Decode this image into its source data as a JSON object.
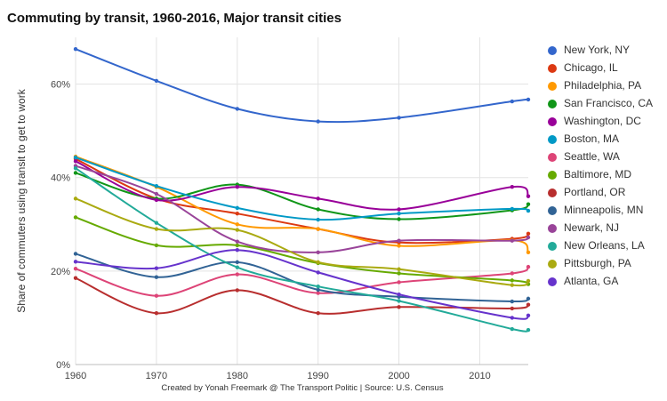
{
  "chart_data": {
    "type": "line",
    "title": "Commuting by transit, 1960-2016, Major transit cities",
    "xlabel": "",
    "ylabel": "Share of commuters using transit to get to work",
    "footnote": "Created by Yonah Freemark @ The Transport Politic | Source: U.S. Census",
    "x": [
      1960,
      1970,
      1980,
      1990,
      2000,
      2014,
      2016
    ],
    "xlim": [
      1960,
      2016
    ],
    "ylim": [
      0,
      70
    ],
    "xticks": [
      "1960",
      "1970",
      "1980",
      "1990",
      "2000",
      "2010"
    ],
    "yticks": [
      {
        "value": 0,
        "label": "0%"
      },
      {
        "value": 20,
        "label": "20%"
      },
      {
        "value": 40,
        "label": "40%"
      },
      {
        "value": 60,
        "label": "60%"
      }
    ],
    "grid": true,
    "legend_position": "right",
    "series": [
      {
        "name": "New York, NY",
        "color": "#3366cc",
        "values": [
          67.5,
          60.7,
          54.7,
          52.0,
          52.8,
          56.3,
          56.7
        ]
      },
      {
        "name": "Chicago, IL",
        "color": "#dc3912",
        "values": [
          44.0,
          35.5,
          32.3,
          29.0,
          26.1,
          26.9,
          28.0
        ]
      },
      {
        "name": "Philadelphia, PA",
        "color": "#ff9900",
        "values": [
          44.5,
          38.0,
          30.0,
          29.0,
          25.4,
          26.6,
          24.0
        ]
      },
      {
        "name": "San Francisco, CA",
        "color": "#109618",
        "values": [
          41.0,
          35.5,
          38.5,
          33.2,
          31.1,
          33.0,
          34.3
        ]
      },
      {
        "name": "Washington, DC",
        "color": "#990099",
        "values": [
          43.5,
          35.2,
          38.0,
          35.5,
          33.2,
          38.0,
          36.0
        ]
      },
      {
        "name": "Boston, MA",
        "color": "#0099c6",
        "values": [
          44.3,
          38.2,
          33.5,
          31.0,
          32.3,
          33.3,
          32.9
        ]
      },
      {
        "name": "Seattle, WA",
        "color": "#dd4477",
        "values": [
          20.5,
          14.7,
          19.3,
          15.3,
          17.6,
          19.5,
          20.9
        ]
      },
      {
        "name": "Baltimore, MD",
        "color": "#66aa00",
        "values": [
          31.5,
          25.5,
          25.5,
          21.7,
          19.5,
          18.0,
          17.2
        ]
      },
      {
        "name": "Portland, OR",
        "color": "#b82e2e",
        "values": [
          18.5,
          11.0,
          15.9,
          11.0,
          12.3,
          12.0,
          12.8
        ]
      },
      {
        "name": "Minneapolis, MN",
        "color": "#316395",
        "values": [
          23.7,
          18.7,
          21.9,
          16.0,
          14.5,
          13.5,
          14.1
        ]
      },
      {
        "name": "Newark, NJ",
        "color": "#994499",
        "values": [
          42.5,
          36.5,
          26.3,
          24.0,
          26.5,
          26.5,
          27.2
        ]
      },
      {
        "name": "New Orleans, LA",
        "color": "#22aa99",
        "values": [
          42.0,
          30.3,
          20.8,
          16.7,
          13.6,
          7.6,
          7.4
        ]
      },
      {
        "name": "Pittsburgh, PA",
        "color": "#aaaa11",
        "values": [
          35.5,
          29.0,
          28.8,
          21.9,
          20.4,
          17.0,
          17.9
        ]
      },
      {
        "name": "Atlanta, GA",
        "color": "#6633cc",
        "values": [
          22.0,
          20.6,
          24.5,
          19.7,
          15.0,
          10.0,
          10.5
        ]
      }
    ]
  }
}
